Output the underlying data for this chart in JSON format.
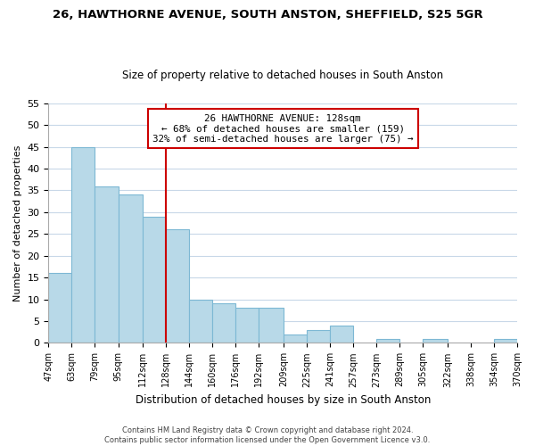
{
  "title": "26, HAWTHORNE AVENUE, SOUTH ANSTON, SHEFFIELD, S25 5GR",
  "subtitle": "Size of property relative to detached houses in South Anston",
  "xlabel": "Distribution of detached houses by size in South Anston",
  "ylabel": "Number of detached properties",
  "bin_edges": [
    47,
    63,
    79,
    95,
    112,
    128,
    144,
    160,
    176,
    192,
    209,
    225,
    241,
    257,
    273,
    289,
    305,
    322,
    338,
    354,
    370
  ],
  "counts": [
    16,
    45,
    36,
    34,
    29,
    26,
    10,
    9,
    8,
    8,
    2,
    3,
    4,
    0,
    1,
    0,
    1,
    0,
    0,
    1
  ],
  "tick_labels": [
    "47sqm",
    "63sqm",
    "79sqm",
    "95sqm",
    "112sqm",
    "128sqm",
    "144sqm",
    "160sqm",
    "176sqm",
    "192sqm",
    "209sqm",
    "225sqm",
    "241sqm",
    "257sqm",
    "273sqm",
    "289sqm",
    "305sqm",
    "322sqm",
    "338sqm",
    "354sqm",
    "370sqm"
  ],
  "bar_color": "#b8d9e8",
  "bar_edge_color": "#7db8d4",
  "vline_x": 128,
  "vline_color": "#cc0000",
  "annotation_line1": "26 HAWTHORNE AVENUE: 128sqm",
  "annotation_line2": "← 68% of detached houses are smaller (159)",
  "annotation_line3": "32% of semi-detached houses are larger (75) →",
  "annotation_box_color": "#ffffff",
  "annotation_box_edge": "#cc0000",
  "ylim": [
    0,
    55
  ],
  "yticks": [
    0,
    5,
    10,
    15,
    20,
    25,
    30,
    35,
    40,
    45,
    50,
    55
  ],
  "footnote": "Contains HM Land Registry data © Crown copyright and database right 2024.\nContains public sector information licensed under the Open Government Licence v3.0.",
  "background_color": "#ffffff",
  "grid_color": "#c8d8e8"
}
